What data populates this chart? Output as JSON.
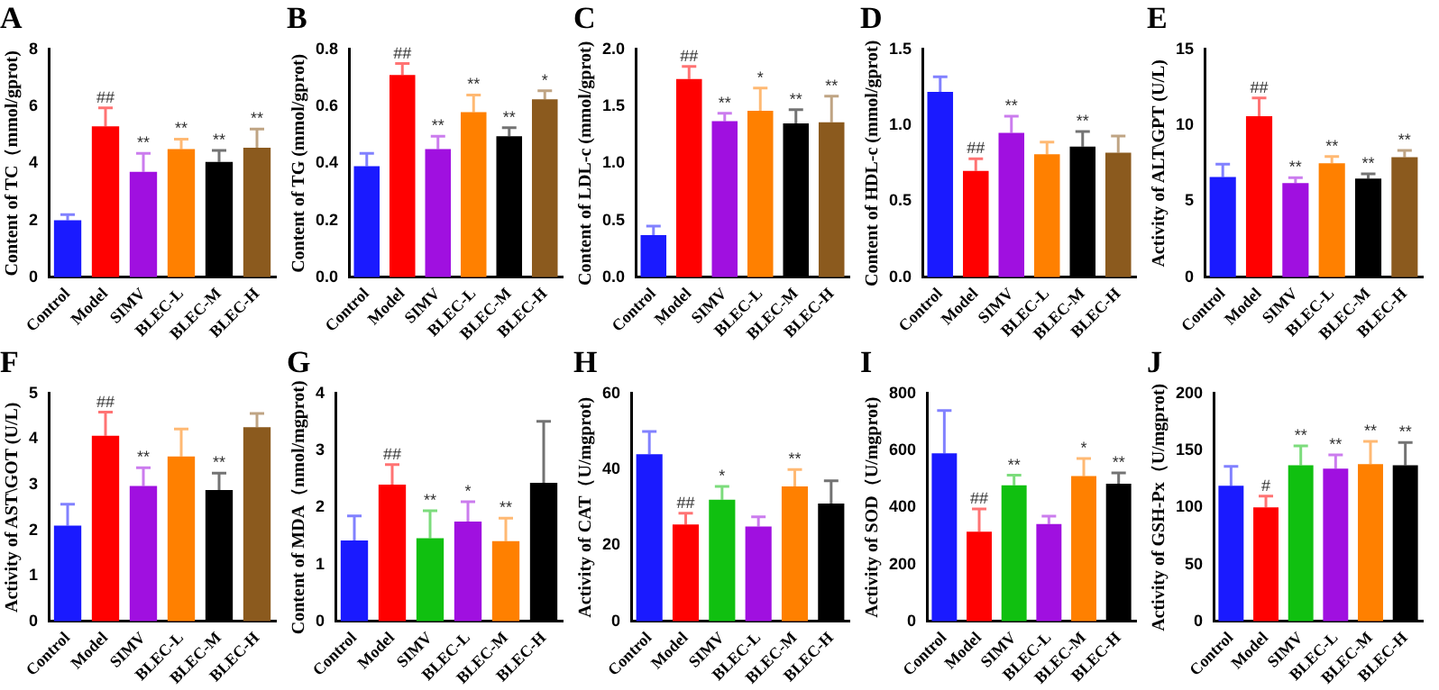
{
  "chart_data": [
    {
      "type": "bar",
      "title": "A",
      "ylabel": "Content of TC（mmol/gprot)",
      "categories": [
        "Control",
        "Model",
        "SIMV",
        "BLEC-L",
        "BLEC-M",
        "BLEC-H"
      ],
      "colors": [
        "#1a1aff",
        "#ff0000",
        "#a010e0",
        "#ff8000",
        "#000000",
        "#8b5a1e"
      ],
      "values": [
        2.0,
        5.3,
        3.7,
        4.5,
        4.05,
        4.55
      ],
      "errors": [
        [
          2.0,
          2.2
        ],
        [
          5.3,
          5.95
        ],
        [
          3.7,
          4.35
        ],
        [
          4.5,
          4.85
        ],
        [
          4.05,
          4.45
        ],
        [
          4.55,
          5.2
        ]
      ],
      "value_labels": [
        null,
        "##",
        "**",
        "**",
        "**",
        "**"
      ],
      "ylim": [
        0,
        8
      ],
      "yticks": [
        0,
        2,
        4,
        6,
        8
      ]
    },
    {
      "type": "bar",
      "title": "B",
      "ylabel": "Content of TG (mmol/gprot)",
      "categories": [
        "Control",
        "Model",
        "SIMV",
        "BLEC-L",
        "BLEC-M",
        "BLEC-H"
      ],
      "colors": [
        "#1a1aff",
        "#ff0000",
        "#a010e0",
        "#ff8000",
        "#000000",
        "#8b5a1e"
      ],
      "values": [
        0.39,
        0.71,
        0.45,
        0.58,
        0.495,
        0.625
      ],
      "errors": [
        [
          0.39,
          0.435
        ],
        [
          0.71,
          0.75
        ],
        [
          0.45,
          0.495
        ],
        [
          0.58,
          0.64
        ],
        [
          0.495,
          0.525
        ],
        [
          0.625,
          0.655
        ]
      ],
      "value_labels": [
        null,
        "##",
        "**",
        "**",
        "**",
        "*"
      ],
      "ylim": [
        0,
        0.8
      ],
      "yticks": [
        {
          "value": 0,
          "label": "0.0"
        },
        {
          "value": 0.2,
          "label": "0.2"
        },
        {
          "value": 0.4,
          "label": "0.4"
        },
        {
          "value": 0.6,
          "label": "0.6"
        },
        {
          "value": 0.8,
          "label": "0.8"
        }
      ]
    },
    {
      "type": "bar",
      "title": "C",
      "ylabel": "Content of LDL-c (mmol/gprot)",
      "categories": [
        "Control",
        "Model",
        "SIMV",
        "BLEC-L",
        "BLEC-M",
        "BLEC-H"
      ],
      "colors": [
        "#1a1aff",
        "#ff0000",
        "#a010e0",
        "#ff8000",
        "#000000",
        "#8b5a1e"
      ],
      "values": [
        0.37,
        1.74,
        1.37,
        1.46,
        1.35,
        1.36
      ],
      "errors": [
        [
          0.37,
          0.45
        ],
        [
          1.74,
          1.85
        ],
        [
          1.37,
          1.44
        ],
        [
          1.46,
          1.66
        ],
        [
          1.35,
          1.47
        ],
        [
          1.36,
          1.59
        ]
      ],
      "value_labels": [
        null,
        "##",
        "**",
        "*",
        "**",
        "**"
      ],
      "ylim": [
        0,
        2
      ],
      "yticks": [
        {
          "value": 0,
          "label": "0.0"
        },
        {
          "value": 0.5,
          "label": "0.5"
        },
        {
          "value": 1,
          "label": "1.0"
        },
        {
          "value": 1.5,
          "label": "1.5"
        },
        {
          "value": 2,
          "label": "2.0"
        }
      ]
    },
    {
      "type": "bar",
      "title": "D",
      "ylabel": "Content of HDL-c (mmol/gprot)",
      "categories": [
        "Control",
        "Model",
        "SIMV",
        "BLEC-L",
        "BLEC-M",
        "BLEC-H"
      ],
      "colors": [
        "#1a1aff",
        "#ff0000",
        "#a010e0",
        "#ff8000",
        "#000000",
        "#8b5a1e"
      ],
      "values": [
        1.22,
        0.7,
        0.95,
        0.81,
        0.86,
        0.82
      ],
      "errors": [
        [
          1.22,
          1.32
        ],
        [
          0.7,
          0.78
        ],
        [
          0.95,
          1.06
        ],
        [
          0.81,
          0.89
        ],
        [
          0.86,
          0.96
        ],
        [
          0.82,
          0.93
        ]
      ],
      "value_labels": [
        null,
        "##",
        "**",
        null,
        "**",
        null
      ],
      "ylim": [
        0,
        1.5
      ],
      "yticks": [
        {
          "value": 0,
          "label": "0.0"
        },
        {
          "value": 0.5,
          "label": "0.5"
        },
        {
          "value": 1,
          "label": "1.0"
        },
        {
          "value": 1.5,
          "label": "1.5"
        }
      ]
    },
    {
      "type": "bar",
      "title": "E",
      "ylabel": "Activity of ALT\\GPT (U/L)",
      "categories": [
        "Control",
        "Model",
        "SIMV",
        "BLEC-L",
        "BLEC-M",
        "BLEC-H"
      ],
      "colors": [
        "#1a1aff",
        "#ff0000",
        "#a010e0",
        "#ff8000",
        "#000000",
        "#8b5a1e"
      ],
      "values": [
        6.6,
        10.6,
        6.2,
        7.5,
        6.5,
        7.9
      ],
      "errors": [
        [
          6.6,
          7.45
        ],
        [
          10.6,
          11.8
        ],
        [
          6.2,
          6.55
        ],
        [
          7.5,
          7.95
        ],
        [
          6.5,
          6.8
        ],
        [
          7.9,
          8.35
        ]
      ],
      "value_labels": [
        null,
        "##",
        "**",
        "**",
        "**",
        "**"
      ],
      "ylim": [
        0,
        15
      ],
      "yticks": [
        0,
        5,
        10,
        15
      ]
    },
    {
      "type": "bar",
      "title": "F",
      "ylabel": "Activity of AST\\GOT (U/L)",
      "categories": [
        "Control",
        "Model",
        "SIMV",
        "BLEC-L",
        "BLEC-M",
        "BLEC-H"
      ],
      "colors": [
        "#1a1aff",
        "#ff0000",
        "#a010e0",
        "#ff8000",
        "#000000",
        "#8b5a1e"
      ],
      "values": [
        2.1,
        4.07,
        2.97,
        3.62,
        2.88,
        4.26
      ],
      "errors": [
        [
          2.1,
          2.57
        ],
        [
          4.07,
          4.59
        ],
        [
          2.97,
          3.37
        ],
        [
          3.62,
          4.22
        ],
        [
          2.88,
          3.25
        ],
        [
          4.26,
          4.56
        ]
      ],
      "value_labels": [
        null,
        "##",
        "**",
        null,
        "**",
        null
      ],
      "ylim": [
        0,
        5
      ],
      "yticks": [
        0,
        1,
        2,
        3,
        4,
        5
      ]
    },
    {
      "type": "bar",
      "title": "G",
      "ylabel": "Content of MDA（nmol/mgprot)",
      "categories": [
        "Control",
        "Model",
        "SIMV",
        "BLEC-L",
        "BLEC-M",
        "BLEC-H"
      ],
      "colors": [
        "#1a1aff",
        "#ff0000",
        "#10c010",
        "#a010e0",
        "#ff8000",
        "#000000"
      ],
      "values": [
        1.42,
        2.4,
        1.46,
        1.75,
        1.41,
        2.43
      ],
      "errors": [
        [
          1.42,
          1.85
        ],
        [
          2.4,
          2.75
        ],
        [
          1.46,
          1.94
        ],
        [
          1.75,
          2.1
        ],
        [
          1.41,
          1.81
        ],
        [
          2.43,
          3.51
        ]
      ],
      "value_labels": [
        null,
        "##",
        "**",
        "*",
        "**",
        null
      ],
      "ylim": [
        0,
        4
      ],
      "yticks": [
        0,
        1,
        2,
        3,
        4
      ]
    },
    {
      "type": "bar",
      "title": "H",
      "ylabel": "Activity of CAT（U/mgprot)",
      "categories": [
        "Control",
        "Model",
        "SIMV",
        "BLEC-L",
        "BLEC-M",
        "BLEC-H"
      ],
      "colors": [
        "#1a1aff",
        "#ff0000",
        "#10c010",
        "#a010e0",
        "#ff8000",
        "#000000"
      ],
      "values": [
        44,
        25.5,
        32,
        25,
        35.5,
        31
      ],
      "errors": [
        [
          44,
          50
        ],
        [
          25.5,
          28.5
        ],
        [
          32,
          35.5
        ],
        [
          25,
          27.5
        ],
        [
          35.5,
          40
        ],
        [
          31,
          37
        ]
      ],
      "value_labels": [
        null,
        "##",
        "*",
        null,
        "**",
        null
      ],
      "ylim": [
        0,
        60
      ],
      "yticks": [
        0,
        20,
        40,
        60
      ]
    },
    {
      "type": "bar",
      "title": "I",
      "ylabel": "Activity of SOD（U/mgprot)",
      "categories": [
        "Control",
        "Model",
        "SIMV",
        "BLEC-L",
        "BLEC-M",
        "BLEC-H"
      ],
      "colors": [
        "#1a1aff",
        "#ff0000",
        "#10c010",
        "#a010e0",
        "#ff8000",
        "#000000"
      ],
      "values": [
        590,
        315,
        478,
        342,
        510,
        483
      ],
      "errors": [
        [
          590,
          740
        ],
        [
          315,
          395
        ],
        [
          478,
          513
        ],
        [
          342,
          369
        ],
        [
          510,
          572
        ],
        [
          483,
          521
        ]
      ],
      "value_labels": [
        null,
        "##",
        "**",
        null,
        "*",
        "**"
      ],
      "ylim": [
        0,
        800
      ],
      "yticks": [
        0,
        200,
        400,
        600,
        800
      ]
    },
    {
      "type": "bar",
      "title": "J",
      "ylabel": "Activity of GSH-Px（U/mgprot)",
      "categories": [
        "Control",
        "Model",
        "SIMV",
        "BLEC-L",
        "BLEC-M",
        "BLEC-H"
      ],
      "colors": [
        "#1a1aff",
        "#ff0000",
        "#10c010",
        "#a010e0",
        "#ff8000",
        "#000000"
      ],
      "values": [
        119,
        100,
        137,
        134,
        138,
        137
      ],
      "errors": [
        [
          119,
          136
        ],
        [
          100,
          110
        ],
        [
          137,
          154
        ],
        [
          134,
          146
        ],
        [
          138,
          158
        ],
        [
          137,
          157
        ]
      ],
      "value_labels": [
        null,
        "#",
        "**",
        "**",
        "**",
        "**"
      ],
      "ylim": [
        0,
        200
      ],
      "yticks": [
        0,
        50,
        100,
        150,
        200
      ]
    }
  ]
}
